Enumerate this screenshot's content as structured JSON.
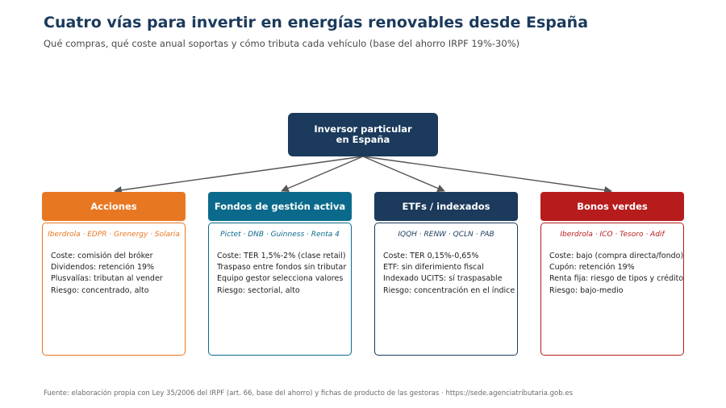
{
  "header": {
    "title": "Cuatro vías para invertir en energías renovables desde España",
    "subtitle": "Qué compras, qué coste anual soportas y cómo tributa cada vehículo (base del ahorro IRPF 19%-30%)"
  },
  "root": {
    "line1": "Inversor particular",
    "line2": "en España"
  },
  "branches": [
    {
      "name": "Acciones",
      "color": "#e87722",
      "examples": "Iberdrola · EDPR · Grenergy · Solaria",
      "facts": [
        "Coste: comisión del bróker",
        "Dividendos: retención 19%",
        "Plusvalías: tributan al vender",
        "Riesgo: concentrado, alto"
      ]
    },
    {
      "name": "Fondos de gestión activa",
      "color": "#0b6a8b",
      "examples": "Pictet · DNB · Guinness · Renta 4",
      "facts": [
        "Coste: TER 1,5%-2% (clase retail)",
        "Traspaso entre fondos sin tributar",
        "Equipo gestor selecciona valores",
        "Riesgo: sectorial, alto"
      ]
    },
    {
      "name": "ETFs / indexados",
      "color": "#1b3a5c",
      "examples": "IQQH · RENW · QCLN · PAB",
      "facts": [
        "Coste: TER 0,15%-0,65%",
        "ETF: sin diferimiento fiscal",
        "Indexado UCITS: sí traspasable",
        "Riesgo: concentración en el índice"
      ]
    },
    {
      "name": "Bonos verdes",
      "color": "#b71c1c",
      "examples": "Iberdrola · ICO · Tesoro · Adif",
      "facts": [
        "Coste: bajo (compra directa/fondo)",
        "Cupón: retención 19%",
        "Renta fija: riesgo de tipos y crédito",
        "Riesgo: bajo-medio"
      ]
    }
  ],
  "footer": {
    "source": "Fuente: elaboración propia con Ley 35/2006 del IRPF (art. 66, base del ahorro) y fichas de producto de las gestoras · https://sede.agenciatributaria.gob.es"
  }
}
